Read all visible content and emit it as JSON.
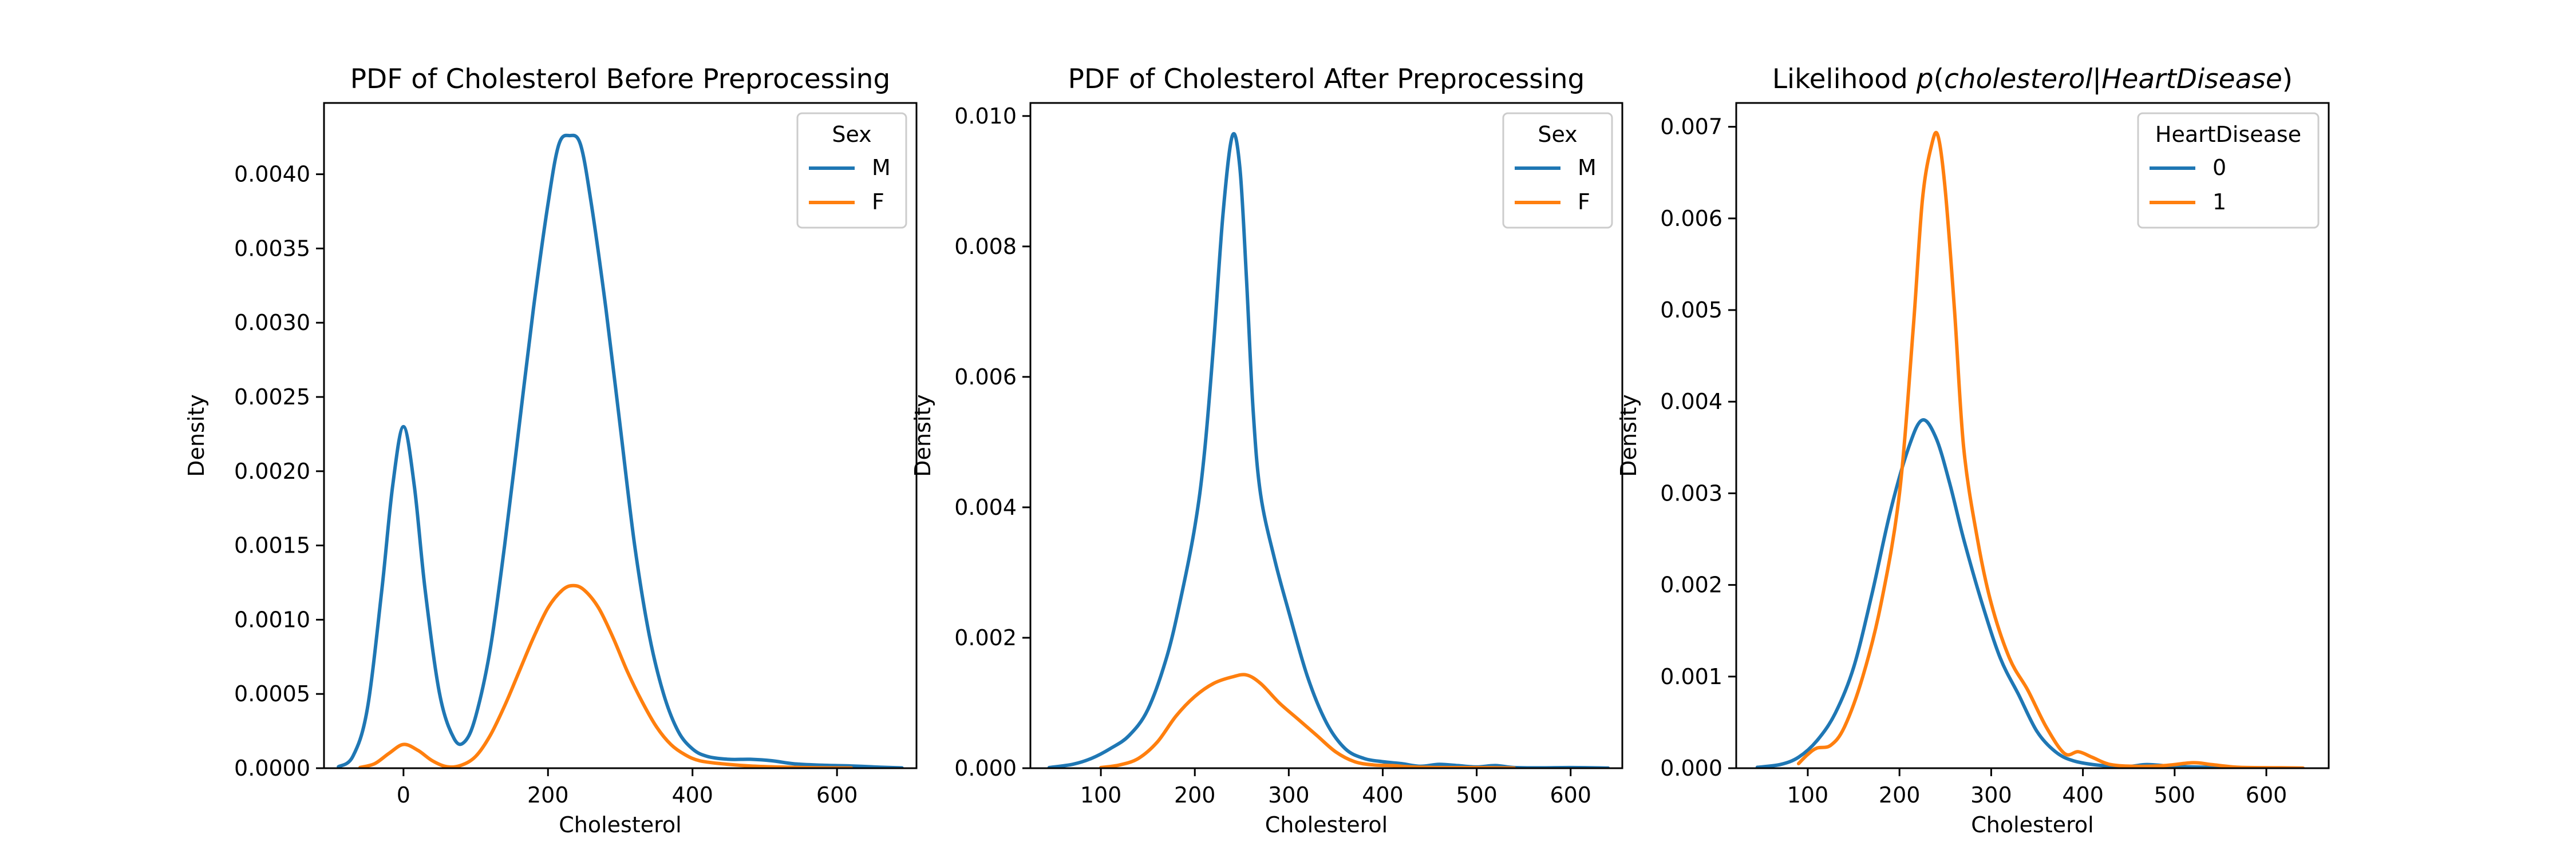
{
  "chart_data": [
    {
      "type": "line",
      "title": "PDF of Cholesterol Before Preprocessing",
      "xlabel": "Cholesterol",
      "ylabel": "Density",
      "xlim": [
        -110,
        710
      ],
      "ylim": [
        0,
        0.00448
      ],
      "xticks": [
        0,
        200,
        400,
        600
      ],
      "yticks": [
        0.0,
        0.0005,
        0.001,
        0.0015,
        0.002,
        0.0025,
        0.003,
        0.0035,
        0.004
      ],
      "ytick_labels": [
        "0.0000",
        "0.0005",
        "0.0010",
        "0.0015",
        "0.0020",
        "0.0025",
        "0.0030",
        "0.0035",
        "0.0040"
      ],
      "xtick_labels": [
        "0",
        "200",
        "400",
        "600"
      ],
      "grid": false,
      "legend": {
        "title": "Sex",
        "placement": "top-right"
      },
      "series": [
        {
          "name": "M",
          "color": "#1f77b4",
          "points": [
            [
              -90,
              1e-05
            ],
            [
              -70,
              8e-05
            ],
            [
              -50,
              0.0004
            ],
            [
              -30,
              0.0012
            ],
            [
              -15,
              0.0019
            ],
            [
              0,
              0.0023
            ],
            [
              15,
              0.0019
            ],
            [
              30,
              0.0012
            ],
            [
              50,
              0.0005
            ],
            [
              70,
              0.0002
            ],
            [
              85,
              0.00018
            ],
            [
              100,
              0.00035
            ],
            [
              120,
              0.0008
            ],
            [
              140,
              0.0015
            ],
            [
              160,
              0.0023
            ],
            [
              180,
              0.0031
            ],
            [
              200,
              0.0038
            ],
            [
              215,
              0.0042
            ],
            [
              230,
              0.00426
            ],
            [
              245,
              0.0042
            ],
            [
              260,
              0.0038
            ],
            [
              280,
              0.0031
            ],
            [
              300,
              0.0023
            ],
            [
              320,
              0.0015
            ],
            [
              340,
              0.0009
            ],
            [
              360,
              0.0005
            ],
            [
              380,
              0.00025
            ],
            [
              400,
              0.00013
            ],
            [
              420,
              8e-05
            ],
            [
              450,
              6e-05
            ],
            [
              480,
              6e-05
            ],
            [
              510,
              5e-05
            ],
            [
              540,
              3e-05
            ],
            [
              580,
              2e-05
            ],
            [
              620,
              1.5e-05
            ],
            [
              660,
              7e-06
            ],
            [
              690,
              2e-06
            ]
          ]
        },
        {
          "name": "F",
          "color": "#ff7f0e",
          "points": [
            [
              -60,
              5e-06
            ],
            [
              -40,
              3e-05
            ],
            [
              -20,
              0.0001
            ],
            [
              0,
              0.00016
            ],
            [
              20,
              0.00012
            ],
            [
              40,
              5e-05
            ],
            [
              60,
              1e-05
            ],
            [
              80,
              2e-05
            ],
            [
              100,
              8e-05
            ],
            [
              120,
              0.00022
            ],
            [
              140,
              0.00042
            ],
            [
              160,
              0.00065
            ],
            [
              180,
              0.00088
            ],
            [
              200,
              0.00108
            ],
            [
              220,
              0.0012
            ],
            [
              235,
              0.00123
            ],
            [
              250,
              0.0012
            ],
            [
              270,
              0.00108
            ],
            [
              290,
              0.00088
            ],
            [
              310,
              0.00065
            ],
            [
              330,
              0.00045
            ],
            [
              350,
              0.00028
            ],
            [
              370,
              0.00016
            ],
            [
              390,
              9e-05
            ],
            [
              410,
              5e-05
            ],
            [
              440,
              3e-05
            ],
            [
              480,
              1.5e-05
            ],
            [
              520,
              8e-06
            ],
            [
              570,
              3e-06
            ],
            [
              620,
              1e-06
            ]
          ]
        }
      ]
    },
    {
      "type": "line",
      "title": "PDF of Cholesterol After Preprocessing",
      "xlabel": "Cholesterol",
      "ylabel": "Density",
      "xlim": [
        25,
        655
      ],
      "ylim": [
        0,
        0.0102
      ],
      "xticks": [
        100,
        200,
        300,
        400,
        500,
        600
      ],
      "xtick_labels": [
        "100",
        "200",
        "300",
        "400",
        "500",
        "600"
      ],
      "yticks": [
        0.0,
        0.002,
        0.004,
        0.006,
        0.008,
        0.01
      ],
      "ytick_labels": [
        "0.000",
        "0.002",
        "0.004",
        "0.006",
        "0.008",
        "0.010"
      ],
      "grid": false,
      "legend": {
        "title": "Sex",
        "placement": "top-right"
      },
      "series": [
        {
          "name": "M",
          "color": "#1f77b4",
          "points": [
            [
              45,
              1e-05
            ],
            [
              70,
              6e-05
            ],
            [
              90,
              0.00015
            ],
            [
              110,
              0.0003
            ],
            [
              130,
              0.0005
            ],
            [
              150,
              0.0009
            ],
            [
              170,
              0.0017
            ],
            [
              185,
              0.0026
            ],
            [
              200,
              0.0037
            ],
            [
              210,
              0.0048
            ],
            [
              220,
              0.0065
            ],
            [
              230,
              0.0085
            ],
            [
              240,
              0.0097
            ],
            [
              248,
              0.0092
            ],
            [
              255,
              0.0075
            ],
            [
              262,
              0.0055
            ],
            [
              270,
              0.0042
            ],
            [
              285,
              0.0032
            ],
            [
              300,
              0.0024
            ],
            [
              320,
              0.0014
            ],
            [
              340,
              0.0007
            ],
            [
              360,
              0.0003
            ],
            [
              380,
              0.00015
            ],
            [
              400,
              0.0001
            ],
            [
              420,
              7e-05
            ],
            [
              440,
              3e-05
            ],
            [
              460,
              6e-05
            ],
            [
              480,
              4e-05
            ],
            [
              500,
              2e-05
            ],
            [
              520,
              4e-05
            ],
            [
              540,
              1e-05
            ],
            [
              570,
              5e-06
            ],
            [
              600,
              1e-05
            ],
            [
              640,
              2e-06
            ]
          ]
        },
        {
          "name": "F",
          "color": "#ff7f0e",
          "points": [
            [
              100,
              1e-05
            ],
            [
              120,
              5e-05
            ],
            [
              140,
              0.00015
            ],
            [
              160,
              0.0004
            ],
            [
              180,
              0.0008
            ],
            [
              200,
              0.0011
            ],
            [
              220,
              0.0013
            ],
            [
              240,
              0.0014
            ],
            [
              255,
              0.00143
            ],
            [
              270,
              0.0013
            ],
            [
              290,
              0.001
            ],
            [
              310,
              0.00075
            ],
            [
              330,
              0.0005
            ],
            [
              350,
              0.00025
            ],
            [
              370,
              0.0001
            ],
            [
              390,
              5e-05
            ],
            [
              410,
              4e-05
            ],
            [
              430,
              2e-05
            ],
            [
              460,
              1e-05
            ],
            [
              500,
              8e-06
            ],
            [
              540,
              3e-06
            ]
          ]
        }
      ]
    },
    {
      "type": "line",
      "title": "Likelihood p(cholesterol|HeartDisease)",
      "title_parts": [
        "Likelihood ",
        "p",
        "(",
        "cholesterol",
        "|",
        "HeartDisease",
        ")"
      ],
      "xlabel": "Cholesterol",
      "ylabel": "Density",
      "xlim": [
        22,
        668
      ],
      "ylim": [
        0,
        0.00726
      ],
      "xticks": [
        100,
        200,
        300,
        400,
        500,
        600
      ],
      "xtick_labels": [
        "100",
        "200",
        "300",
        "400",
        "500",
        "600"
      ],
      "yticks": [
        0.0,
        0.001,
        0.002,
        0.003,
        0.004,
        0.005,
        0.006,
        0.007
      ],
      "ytick_labels": [
        "0.000",
        "0.001",
        "0.002",
        "0.003",
        "0.004",
        "0.005",
        "0.006",
        "0.007"
      ],
      "grid": false,
      "legend": {
        "title": "HeartDisease",
        "placement": "top-right"
      },
      "series": [
        {
          "name": "0",
          "color": "#1f77b4",
          "points": [
            [
              45,
              1e-05
            ],
            [
              70,
              4e-05
            ],
            [
              90,
              0.00012
            ],
            [
              110,
              0.0003
            ],
            [
              130,
              0.0006
            ],
            [
              150,
              0.0011
            ],
            [
              170,
              0.0019
            ],
            [
              190,
              0.0028
            ],
            [
              210,
              0.0035
            ],
            [
              225,
              0.0038
            ],
            [
              240,
              0.0036
            ],
            [
              255,
              0.0031
            ],
            [
              270,
              0.0025
            ],
            [
              290,
              0.0018
            ],
            [
              310,
              0.0012
            ],
            [
              330,
              0.0008
            ],
            [
              350,
              0.0004
            ],
            [
              370,
              0.00018
            ],
            [
              390,
              8e-05
            ],
            [
              420,
              3e-05
            ],
            [
              450,
              2e-05
            ],
            [
              470,
              4e-05
            ],
            [
              500,
              2e-05
            ],
            [
              540,
              1e-05
            ],
            [
              580,
              5e-06
            ],
            [
              620,
              2e-06
            ]
          ]
        },
        {
          "name": "1",
          "color": "#ff7f0e",
          "points": [
            [
              90,
              5e-05
            ],
            [
              100,
              0.00015
            ],
            [
              110,
              0.00022
            ],
            [
              125,
              0.00025
            ],
            [
              140,
              0.00045
            ],
            [
              160,
              0.001
            ],
            [
              180,
              0.0018
            ],
            [
              200,
              0.003
            ],
            [
              215,
              0.0048
            ],
            [
              225,
              0.0062
            ],
            [
              235,
              0.0068
            ],
            [
              242,
              0.0069
            ],
            [
              250,
              0.0063
            ],
            [
              260,
              0.005
            ],
            [
              270,
              0.0035
            ],
            [
              285,
              0.0025
            ],
            [
              300,
              0.0018
            ],
            [
              320,
              0.0012
            ],
            [
              340,
              0.00085
            ],
            [
              360,
              0.00045
            ],
            [
              380,
              0.00016
            ],
            [
              395,
              0.00018
            ],
            [
              410,
              0.00012
            ],
            [
              430,
              4e-05
            ],
            [
              460,
              2e-05
            ],
            [
              490,
              3e-05
            ],
            [
              520,
              6e-05
            ],
            [
              540,
              4e-05
            ],
            [
              570,
              1e-05
            ],
            [
              610,
              5e-06
            ],
            [
              640,
              2e-06
            ]
          ]
        }
      ]
    }
  ]
}
